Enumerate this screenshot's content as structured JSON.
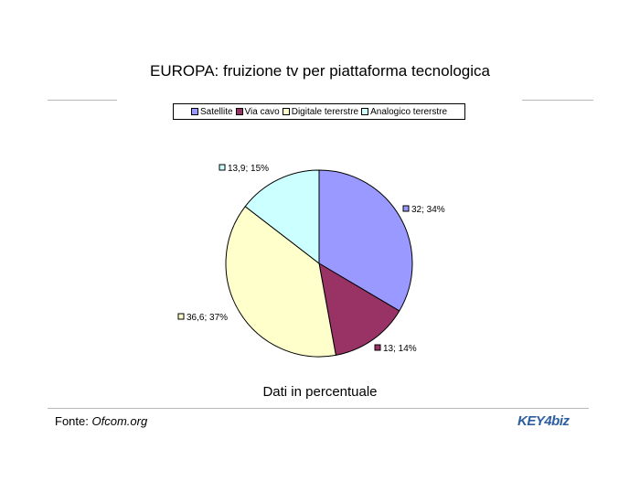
{
  "title": "EUROPA: fruizione tv per piattaforma tecnologica",
  "caption": "Dati in percentuale",
  "source": {
    "label": "Fonte:",
    "value": "Ofcom.org"
  },
  "logo": {
    "text": "KEY4biz"
  },
  "chart_data": {
    "type": "pie",
    "title": "EUROPA: fruizione tv per piattaforma tecnologica",
    "legend_placement": "top",
    "slices": [
      {
        "name": "Satellite",
        "value": 32,
        "percent": 34,
        "label": "32; 34%",
        "color": "#9999ff"
      },
      {
        "name": "Via cavo",
        "value": 13,
        "percent": 14,
        "label": "13; 14%",
        "color": "#993366"
      },
      {
        "name": "Digitale tererstre",
        "value": 36.6,
        "percent": 37,
        "label": "36,6; 37%",
        "color": "#ffffcc"
      },
      {
        "name": "Analogico tererstre",
        "value": 13.9,
        "percent": 15,
        "label": "13,9; 15%",
        "color": "#ccffff"
      }
    ]
  }
}
